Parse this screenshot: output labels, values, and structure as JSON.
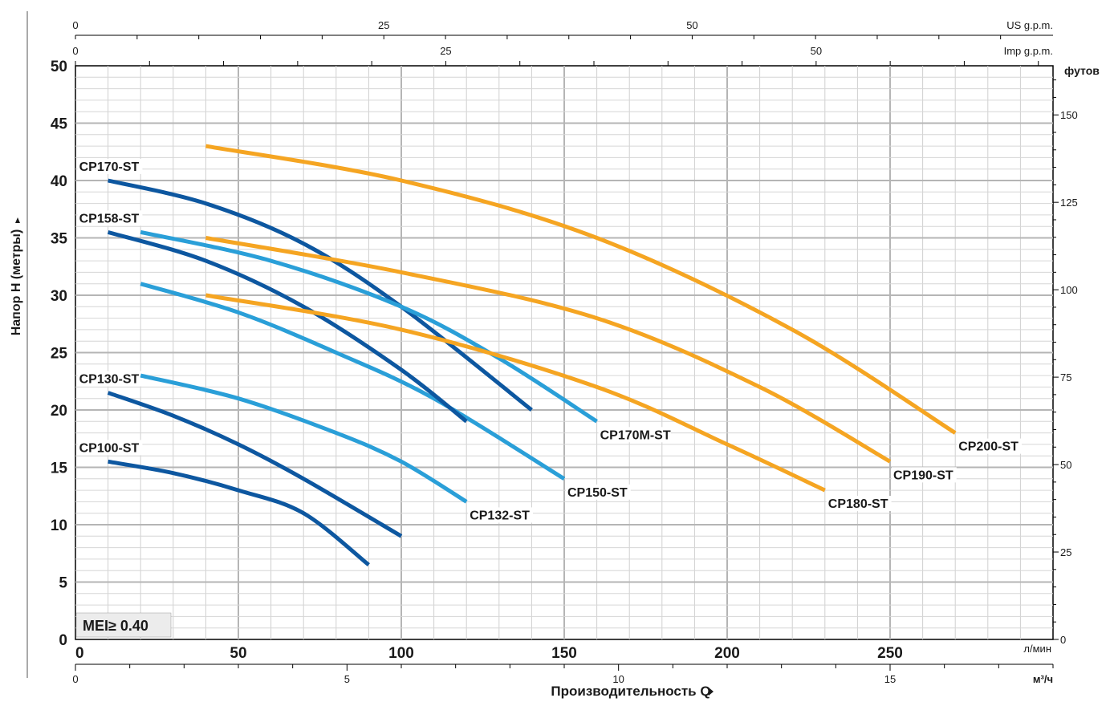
{
  "chart_data": {
    "type": "line",
    "ylabel": "Напор H (метры)",
    "xlabel": "Производительность Q",
    "x_units": "л/мин",
    "xlim": [
      0,
      300
    ],
    "ylim": [
      0,
      50
    ],
    "x_ticks": [
      "0",
      "50",
      "100",
      "150",
      "200",
      "250"
    ],
    "y_ticks": [
      "0",
      "5",
      "10",
      "15",
      "20",
      "25",
      "30",
      "35",
      "40",
      "45",
      "50"
    ],
    "secondary_axes": {
      "us_gpm": {
        "label": "US g.p.m.",
        "ticks": [
          "0",
          "25",
          "50"
        ]
      },
      "imp_gpm": {
        "label": "Imp g.p.m.",
        "ticks": [
          "0",
          "25",
          "50"
        ]
      },
      "feet": {
        "label": "футов",
        "ticks": [
          "0",
          "25",
          "50",
          "75",
          "100",
          "125",
          "150"
        ]
      },
      "m3h": {
        "label": "м³/ч",
        "ticks": [
          "0",
          "5",
          "10",
          "15"
        ]
      }
    },
    "badge": "MEI≥ 0.40",
    "grid": true,
    "series": [
      {
        "name": "CP100-ST",
        "color": "#0d57a0",
        "label_side": "start",
        "points": [
          [
            10,
            15.5
          ],
          [
            30,
            14.5
          ],
          [
            50,
            13
          ],
          [
            70,
            11
          ],
          [
            90,
            6.5
          ]
        ]
      },
      {
        "name": "CP130-ST",
        "color": "#0d57a0",
        "label_side": "start",
        "points": [
          [
            10,
            21.5
          ],
          [
            30,
            19.5
          ],
          [
            50,
            17
          ],
          [
            70,
            14
          ],
          [
            100,
            9
          ]
        ]
      },
      {
        "name": "CP132-ST",
        "color": "#2a9fd8",
        "label_side": "end",
        "points": [
          [
            20,
            23
          ],
          [
            50,
            21
          ],
          [
            80,
            18
          ],
          [
            100,
            15.5
          ],
          [
            120,
            12
          ]
        ]
      },
      {
        "name": "CP150-ST",
        "color": "#2a9fd8",
        "label_side": "end",
        "points": [
          [
            20,
            31
          ],
          [
            50,
            28.5
          ],
          [
            80,
            25
          ],
          [
            110,
            21
          ],
          [
            150,
            14
          ]
        ]
      },
      {
        "name": "CP158-ST",
        "color": "#0d57a0",
        "label_side": "start",
        "points": [
          [
            10,
            35.5
          ],
          [
            40,
            33
          ],
          [
            70,
            29
          ],
          [
            100,
            23.5
          ],
          [
            120,
            19
          ]
        ]
      },
      {
        "name": "CP170-ST",
        "color": "#0d57a0",
        "label_side": "start",
        "points": [
          [
            10,
            40
          ],
          [
            40,
            38
          ],
          [
            70,
            34.5
          ],
          [
            100,
            29
          ],
          [
            140,
            20
          ]
        ]
      },
      {
        "name": "CP170M-ST",
        "color": "#2a9fd8",
        "label_side": "end",
        "points": [
          [
            20,
            35.5
          ],
          [
            60,
            33
          ],
          [
            100,
            29
          ],
          [
            130,
            24.5
          ],
          [
            160,
            19
          ]
        ]
      },
      {
        "name": "CP180-ST",
        "color": "#f5a522",
        "label_side": "end",
        "points": [
          [
            40,
            30
          ],
          [
            100,
            27
          ],
          [
            160,
            22
          ],
          [
            200,
            17
          ],
          [
            230,
            13
          ]
        ]
      },
      {
        "name": "CP190-ST",
        "color": "#f5a522",
        "label_side": "end",
        "points": [
          [
            40,
            35
          ],
          [
            100,
            32
          ],
          [
            160,
            28
          ],
          [
            210,
            22
          ],
          [
            250,
            15.5
          ]
        ]
      },
      {
        "name": "CP200-ST",
        "color": "#f5a522",
        "label_side": "end",
        "points": [
          [
            40,
            43
          ],
          [
            100,
            40
          ],
          [
            160,
            35
          ],
          [
            220,
            27
          ],
          [
            270,
            18
          ]
        ]
      }
    ]
  }
}
